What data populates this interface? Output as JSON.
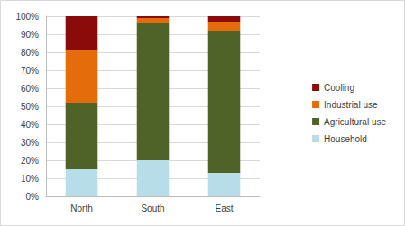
{
  "chart_data": {
    "type": "bar",
    "stacked": true,
    "categories": [
      "North",
      "South",
      "East"
    ],
    "series": [
      {
        "name": "Household",
        "color": "#b7dee8",
        "values": [
          15,
          20,
          13
        ]
      },
      {
        "name": "Agricultural use",
        "color": "#4f6228",
        "values": [
          37,
          76,
          79
        ]
      },
      {
        "name": "Industrial use",
        "color": "#e46c0a",
        "values": [
          29,
          3,
          5
        ]
      },
      {
        "name": "Cooling",
        "color": "#8b0a0a",
        "values": [
          19,
          1,
          3
        ]
      }
    ],
    "ylim": [
      0,
      100
    ],
    "yticks": [
      {
        "value": 0,
        "label": "0%"
      },
      {
        "value": 10,
        "label": "10%"
      },
      {
        "value": 20,
        "label": "20%"
      },
      {
        "value": 30,
        "label": "30%"
      },
      {
        "value": 40,
        "label": "40%"
      },
      {
        "value": 50,
        "label": "50%"
      },
      {
        "value": 60,
        "label": "60%"
      },
      {
        "value": 70,
        "label": "70%"
      },
      {
        "value": 80,
        "label": "80%"
      },
      {
        "value": 90,
        "label": "90%"
      },
      {
        "value": 100,
        "label": "100%"
      }
    ],
    "grid": true,
    "legend": "right"
  }
}
